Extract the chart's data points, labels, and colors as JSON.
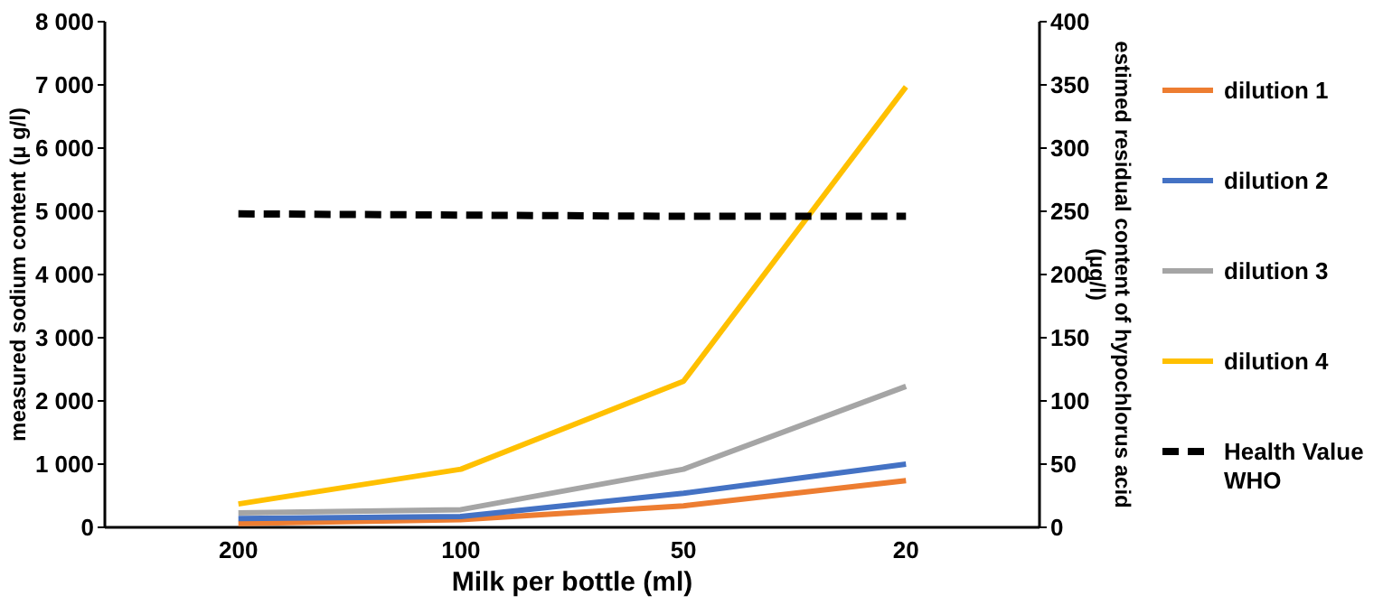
{
  "chart_data": {
    "type": "line",
    "xlabel": "Milk per bottle (ml)",
    "ylabel": "measured sodium content (µ g/l)",
    "y2label": "estimed residual content of hypochlorus acid (µg/l)",
    "categories": [
      "200",
      "100",
      "50",
      "20"
    ],
    "ylim": [
      0,
      8000
    ],
    "yticks": [
      {
        "value": 0,
        "label": "0"
      },
      {
        "value": 1000,
        "label": "1 000"
      },
      {
        "value": 2000,
        "label": "2 000"
      },
      {
        "value": 3000,
        "label": "3 000"
      },
      {
        "value": 4000,
        "label": "4 000"
      },
      {
        "value": 5000,
        "label": "5 000"
      },
      {
        "value": 6000,
        "label": "6 000"
      },
      {
        "value": 7000,
        "label": "7 000"
      },
      {
        "value": 8000,
        "label": "8 000"
      }
    ],
    "y2lim": [
      0,
      400
    ],
    "y2ticks": [
      0,
      50,
      100,
      150,
      200,
      250,
      300,
      350,
      400
    ],
    "legend": "right",
    "grid": false,
    "series": [
      {
        "name": "dilution 1",
        "color": "#ed7d31",
        "values": [
          60,
          120,
          340,
          740
        ]
      },
      {
        "name": "dilution 2",
        "color": "#4472c4",
        "values": [
          140,
          170,
          540,
          1000
        ]
      },
      {
        "name": "dilution 3",
        "color": "#a5a5a5",
        "values": [
          230,
          280,
          920,
          2230
        ]
      },
      {
        "name": "dilution 4",
        "color": "#ffc000",
        "values": [
          370,
          920,
          2310,
          6970
        ]
      },
      {
        "name": "Health Value WHO",
        "color": "#000000",
        "axis": "y2",
        "line_style": "dashed",
        "values": [
          248,
          247,
          246,
          246
        ]
      }
    ]
  }
}
